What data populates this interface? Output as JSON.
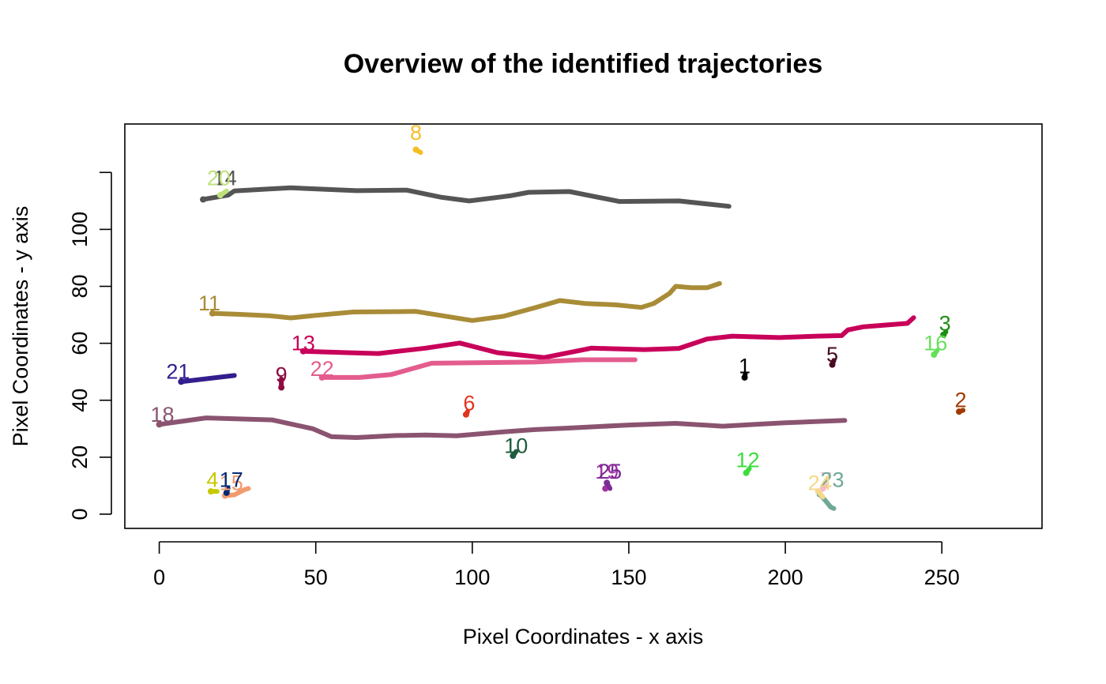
{
  "chart_data": {
    "type": "line",
    "title": "Overview of the identified trajectories",
    "xlabel": "Pixel Coordinates - x axis",
    "ylabel": "Pixel Coordinates - y axis",
    "xlim": [
      -11,
      282
    ],
    "ylim": [
      -5,
      137
    ],
    "xticks": [
      0,
      50,
      100,
      150,
      200,
      250
    ],
    "yticks": [
      0,
      20,
      40,
      60,
      80,
      100
    ],
    "grid": false,
    "legend": "none",
    "series": [
      {
        "name": "1",
        "color": "#000000",
        "label_at": [
          187,
          52
        ],
        "points": [
          [
            187,
            48
          ],
          [
            187.2,
            49.2
          ]
        ]
      },
      {
        "name": "2",
        "color": "#A23A00",
        "label_at": [
          256,
          40
        ],
        "points": [
          [
            255.5,
            36
          ],
          [
            256.8,
            36.5
          ]
        ]
      },
      {
        "name": "3",
        "color": "#1D8E12",
        "label_at": [
          251,
          67
        ],
        "points": [
          [
            250.5,
            63
          ],
          [
            251.3,
            64
          ]
        ]
      },
      {
        "name": "4",
        "color": "#C8C800",
        "label_at": [
          17,
          12
        ],
        "points": [
          [
            16.5,
            8
          ],
          [
            18.5,
            8
          ]
        ]
      },
      {
        "name": "5",
        "color": "#4A0A24",
        "label_at": [
          215,
          56
        ],
        "points": [
          [
            215,
            52.5
          ],
          [
            215.5,
            54
          ]
        ]
      },
      {
        "name": "6",
        "color": "#E0341E",
        "label_at": [
          99,
          39
        ],
        "points": [
          [
            98,
            35
          ],
          [
            98.5,
            36
          ]
        ]
      },
      {
        "name": "7",
        "color": "#F8B8CC",
        "label_at": [
          213,
          12
        ],
        "points": [
          [
            212,
            9
          ],
          [
            213,
            10
          ]
        ]
      },
      {
        "name": "8",
        "color": "#F6BE22",
        "label_at": [
          82,
          134
        ],
        "points": [
          [
            82,
            128
          ],
          [
            83.5,
            127
          ]
        ]
      },
      {
        "name": "9",
        "color": "#8E0C42",
        "label_at": [
          39,
          49
        ],
        "points": [
          [
            39,
            44.5
          ],
          [
            39,
            47.5
          ]
        ]
      },
      {
        "name": "10",
        "color": "#1E5C3E",
        "label_at": [
          114,
          24
        ],
        "points": [
          [
            113,
            20.5
          ],
          [
            114,
            22
          ]
        ]
      },
      {
        "name": "11",
        "color": "#A98C37",
        "label_at": [
          16,
          74
        ],
        "points": [
          [
            17,
            70.5
          ],
          [
            25,
            70.2
          ],
          [
            35,
            69.7
          ],
          [
            42,
            68.9
          ],
          [
            50,
            69.8
          ],
          [
            62,
            71
          ],
          [
            82,
            71.2
          ],
          [
            100,
            68
          ],
          [
            110,
            69.5
          ],
          [
            120,
            72.5
          ],
          [
            128,
            75
          ],
          [
            136,
            74
          ],
          [
            146,
            73.5
          ],
          [
            154,
            72.6
          ],
          [
            158,
            74
          ],
          [
            163,
            77.5
          ],
          [
            165,
            80
          ],
          [
            170,
            79.5
          ],
          [
            175,
            79.5
          ],
          [
            179,
            81
          ]
        ]
      },
      {
        "name": "12",
        "color": "#3DDD3D",
        "label_at": [
          188,
          19
        ],
        "points": [
          [
            187.5,
            14.5
          ],
          [
            188.5,
            16
          ]
        ]
      },
      {
        "name": "13",
        "color": "#C8005A",
        "label_at": [
          46,
          60
        ],
        "points": [
          [
            46,
            57.2
          ],
          [
            60,
            56.7
          ],
          [
            70,
            56.4
          ],
          [
            85,
            58.3
          ],
          [
            96,
            60.1
          ],
          [
            108,
            56.7
          ],
          [
            123,
            55
          ],
          [
            138,
            58.3
          ],
          [
            155,
            57.8
          ],
          [
            166,
            58.2
          ],
          [
            175,
            61.5
          ],
          [
            183,
            62.5
          ],
          [
            198,
            62
          ],
          [
            210,
            62.5
          ],
          [
            218,
            62.7
          ],
          [
            220,
            64.7
          ],
          [
            225,
            65.8
          ],
          [
            233,
            66.5
          ],
          [
            239,
            67
          ],
          [
            241,
            69
          ]
        ]
      },
      {
        "name": "14",
        "color": "#555555",
        "label_at": [
          21,
          118
        ],
        "points": [
          [
            14,
            110.5
          ],
          [
            22,
            112
          ],
          [
            24,
            113.5
          ],
          [
            35,
            114.2
          ],
          [
            42,
            114.6
          ],
          [
            63,
            113.6
          ],
          [
            79,
            113.8
          ],
          [
            90,
            111.3
          ],
          [
            99,
            110
          ],
          [
            112,
            111.8
          ],
          [
            118,
            113
          ],
          [
            131,
            113.3
          ],
          [
            147,
            109.8
          ],
          [
            166,
            110
          ],
          [
            182,
            108.1
          ]
        ]
      },
      {
        "name": "15",
        "color": "#F39B6D",
        "label_at": [
          23,
          11
        ],
        "points": [
          [
            21,
            6.5
          ],
          [
            24,
            6.8
          ],
          [
            27,
            8.5
          ],
          [
            28.5,
            9
          ]
        ]
      },
      {
        "name": "16",
        "color": "#66E05A",
        "label_at": [
          248,
          60
        ],
        "points": [
          [
            247.5,
            56
          ],
          [
            248.5,
            57.5
          ]
        ]
      },
      {
        "name": "17",
        "color": "#082A72",
        "label_at": [
          23,
          12
        ],
        "points": [
          [
            21.5,
            7.5
          ],
          [
            22,
            9
          ]
        ]
      },
      {
        "name": "18",
        "color": "#8A5470",
        "label_at": [
          1,
          35
        ],
        "points": [
          [
            0,
            31.5
          ],
          [
            15,
            33.8
          ],
          [
            36,
            33.1
          ],
          [
            49,
            30
          ],
          [
            55,
            27.2
          ],
          [
            63,
            26.9
          ],
          [
            75,
            27.6
          ],
          [
            85,
            27.8
          ],
          [
            95,
            27.5
          ],
          [
            110,
            28.9
          ],
          [
            120,
            29.7
          ],
          [
            130,
            30.2
          ],
          [
            150,
            31.3
          ],
          [
            165,
            31.9
          ],
          [
            180,
            30.9
          ],
          [
            190,
            31.5
          ],
          [
            200,
            32.1
          ],
          [
            219,
            32.9
          ]
        ]
      },
      {
        "name": "19",
        "color": "#A230A2",
        "label_at": [
          143,
          15
        ],
        "points": [
          [
            142.5,
            9
          ],
          [
            143.5,
            10
          ]
        ]
      },
      {
        "name": "20",
        "color": "#BEE07A",
        "label_at": [
          19,
          118
        ],
        "points": [
          [
            19.5,
            112
          ],
          [
            21.5,
            113.5
          ]
        ]
      },
      {
        "name": "21",
        "color": "#341E8E",
        "label_at": [
          6,
          50
        ],
        "points": [
          [
            7,
            46.5
          ],
          [
            24,
            48.7
          ]
        ]
      },
      {
        "name": "22",
        "color": "#E45C8E",
        "label_at": [
          52,
          51
        ],
        "points": [
          [
            52,
            48
          ],
          [
            64,
            48
          ],
          [
            74,
            49
          ],
          [
            87,
            53
          ],
          [
            120,
            53.4
          ],
          [
            135,
            54.2
          ],
          [
            152,
            54.2
          ]
        ]
      },
      {
        "name": "23",
        "color": "#6FA896",
        "label_at": [
          215,
          12
        ],
        "points": [
          [
            211,
            7
          ],
          [
            213,
            4.5
          ],
          [
            214.5,
            2.5
          ],
          [
            215.5,
            2
          ]
        ]
      },
      {
        "name": "24",
        "color": "#F5D88A",
        "label_at": [
          211,
          11
        ],
        "points": [
          [
            210.5,
            8
          ],
          [
            212,
            6
          ]
        ]
      },
      {
        "name": "25",
        "color": "#7A2C96",
        "label_at": [
          144,
          15
        ],
        "points": [
          [
            143,
            11
          ],
          [
            144,
            9
          ]
        ]
      }
    ]
  }
}
